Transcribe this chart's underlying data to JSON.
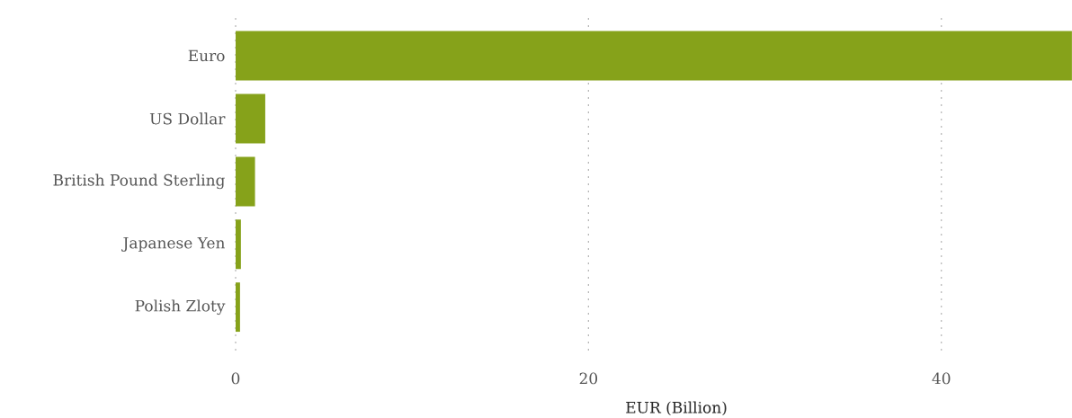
{
  "chart_data": {
    "type": "bar",
    "orientation": "horizontal",
    "categories": [
      "Euro",
      "US Dollar",
      "British Pound Sterling",
      "Japanese Yen",
      "Polish Zloty"
    ],
    "values": [
      47.4,
      1.68,
      1.1,
      0.3,
      0.25
    ],
    "color": "#86a21a",
    "xlabel": "EUR (Billion)",
    "xlim": [
      0,
      47.4
    ],
    "xticks": [
      0,
      20,
      40
    ],
    "grid": "x"
  }
}
